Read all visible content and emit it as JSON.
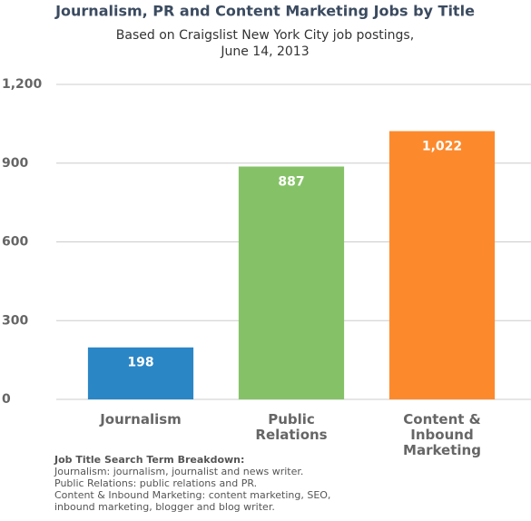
{
  "chart_data": {
    "type": "bar",
    "title": "Journalism, PR and Content Marketing Jobs by Title",
    "subtitle": [
      "Based on Craigslist New York City job postings,",
      "June 14, 2013"
    ],
    "categories": [
      "Journalism",
      "Public Relations",
      "Content & Inbound Marketing"
    ],
    "values": [
      198,
      887,
      1022
    ],
    "value_labels": [
      "198",
      "887",
      "1,022"
    ],
    "colors": [
      "#2b86c6",
      "#85c267",
      "#fc8a2d"
    ],
    "ylim": [
      0,
      1200
    ],
    "yticks": [
      0,
      300,
      600,
      900,
      {
        "value": 1200,
        "label": "1,200"
      }
    ],
    "grid": true
  },
  "footnote": {
    "title": "Job Title Search Term Breakdown:",
    "lines": [
      "Journalism: journalism, journalist and news writer.",
      "Public Relations: public relations and PR.",
      "Content & Inbound Marketing: content marketing, SEO, inbound marketing, blogger and blog writer."
    ]
  }
}
